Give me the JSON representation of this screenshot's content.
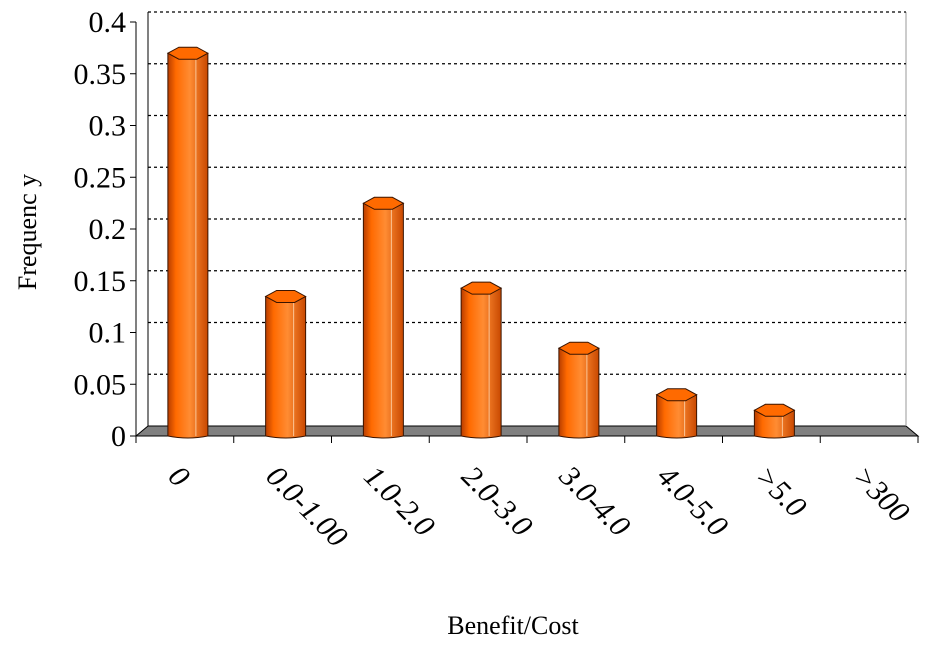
{
  "chart_data": {
    "type": "bar",
    "title": "",
    "xlabel": "Benefit/Cost",
    "ylabel": "Frequency",
    "ylabel_display": "Frequenc y",
    "categories": [
      "0",
      "0.0-1.00",
      "1.0-2.0",
      "2.0-3.0",
      "3.0-4.0",
      "4.0-5.0",
      ">5.0",
      ">300"
    ],
    "values": [
      0.365,
      0.13,
      0.22,
      0.138,
      0.08,
      0.035,
      0.02,
      0
    ],
    "y_ticks": [
      "0",
      "0.05",
      "0.1",
      "0.15",
      "0.2",
      "0.25",
      "0.3",
      "0.35",
      "0.4"
    ],
    "ylim": [
      0,
      0.4
    ],
    "grid": true,
    "legend": "none",
    "bar_color": "#ff6600",
    "floor_color": "#808080"
  }
}
